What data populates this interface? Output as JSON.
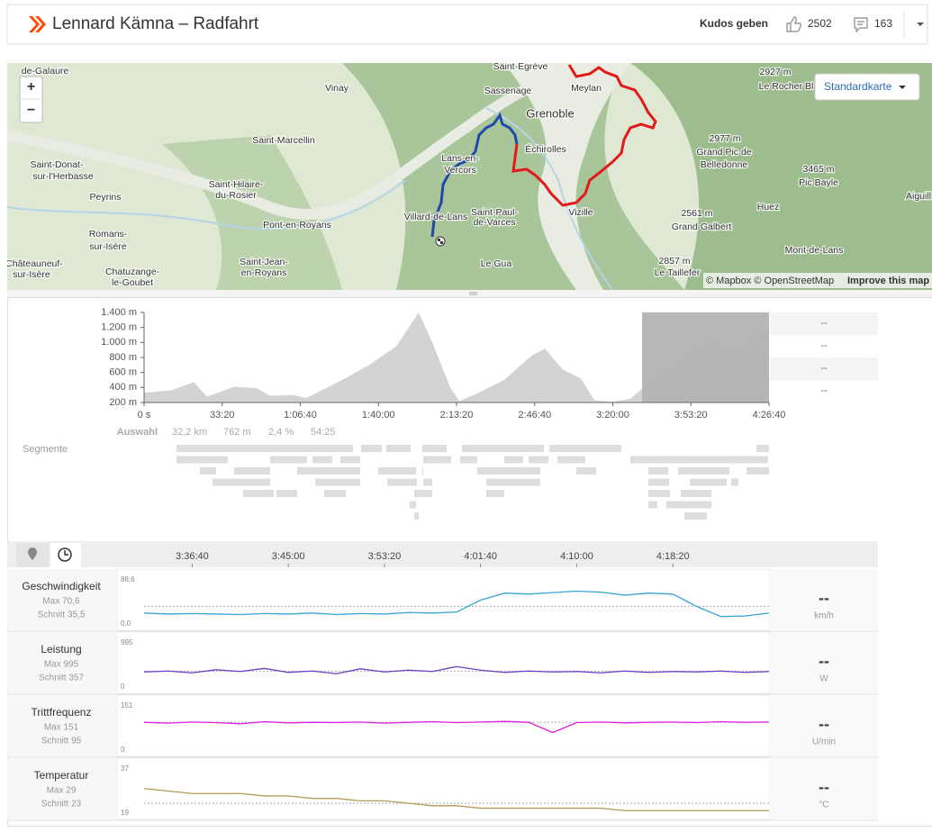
{
  "header": {
    "title": "Lennard Kämna – Radfahrt",
    "kudos_button": "Kudos geben",
    "kudos_count": 2502,
    "comment_count": 163
  },
  "map": {
    "zoom_in": "+",
    "zoom_out": "−",
    "style_button": "Standardkarte",
    "attribution": "© Mapbox © OpenStreetMap",
    "improve": "Improve this map",
    "labels": [
      "Saint-Egrève",
      "Meylan",
      "Vinay",
      "Sassenage",
      "Grenoble",
      "de-Galaure",
      "2927 m",
      "Le Rocher Bl",
      "Saint-Marcellin",
      "Échirolles",
      "2977 m",
      "Grand Pic de",
      "Belledonne",
      "Saint-Donat-",
      "sur-l'Herbasse",
      "Lans-en-",
      "Vercors",
      "3465 m",
      "Pic Bayle",
      "Saint-Hilaire-",
      "du-Rosier",
      "Peyrins",
      "Aiguill",
      "Huez",
      "Villard-de-Lans",
      "Saint-Paul-",
      "de-Varces",
      "Vizille",
      "2561 m",
      "Grand Galbert",
      "Pont-en-Royans",
      "Romans-",
      "sur-Isère",
      "Mont-de-Lans",
      "Châteauneuf-",
      "sur-Isère",
      "Saint-Jean-",
      "en-Royans",
      "Chatuzange-",
      "le-Goubet",
      "Le Gua",
      "2857 m",
      "Le Taillefer"
    ]
  },
  "selection": {
    "label": "Auswahl",
    "distance": "32,2 km",
    "elevation": "762 m",
    "grade": "2,4 %",
    "time": "54:25"
  },
  "segments_label": "Segmente",
  "elevation_readouts": [
    "--",
    "--",
    "--",
    "--"
  ],
  "stream_xticks": [
    {
      "value": 13000,
      "label": "3:36:40"
    },
    {
      "value": 13500,
      "label": "3:45:00"
    },
    {
      "value": 14000,
      "label": "3:53:20"
    },
    {
      "value": 14500,
      "label": "4:01:40"
    },
    {
      "value": 15000,
      "label": "4:10:00"
    },
    {
      "value": 15500,
      "label": "4:18:20"
    }
  ],
  "chart_data": [
    {
      "type": "area",
      "color": "#d3d3d3",
      "x": [
        0,
        690,
        1270,
        1610,
        2310,
        2880,
        3230,
        3800,
        4150,
        5070,
        5760,
        6460,
        7030,
        7380,
        7840,
        8070,
        8530,
        9220,
        9910,
        10260,
        10720,
        11180,
        11530,
        11990,
        12450,
        12790,
        13830,
        14520,
        14980,
        15440,
        16000
      ],
      "values": [
        330,
        360,
        470,
        280,
        410,
        390,
        290,
        300,
        260,
        500,
        700,
        950,
        1400,
        1000,
        400,
        220,
        320,
        500,
        820,
        920,
        640,
        520,
        230,
        210,
        250,
        400,
        800,
        1080,
        950,
        970,
        1200
      ],
      "xlim": [
        0,
        16000
      ],
      "ylim": [
        200,
        1400
      ],
      "xticks": [
        {
          "value": 0,
          "label": "0 s"
        },
        {
          "value": 2000,
          "label": "33:20"
        },
        {
          "value": 4000,
          "label": "1:06:40"
        },
        {
          "value": 6000,
          "label": "1:40:00"
        },
        {
          "value": 8000,
          "label": "2:13:20"
        },
        {
          "value": 10000,
          "label": "2:46:40"
        },
        {
          "value": 12000,
          "label": "3:20:00"
        },
        {
          "value": 14000,
          "label": "3:53:20"
        },
        {
          "value": 16000,
          "label": "4:26:40"
        }
      ],
      "yticks": [
        {
          "value": 200,
          "label": "200 m"
        },
        {
          "value": 400,
          "label": "400 m"
        },
        {
          "value": 600,
          "label": "600 m"
        },
        {
          "value": 800,
          "label": "800 m"
        },
        {
          "value": 1000,
          "label": "1.000 m"
        },
        {
          "value": 1200,
          "label": "1.200 m"
        },
        {
          "value": 1400,
          "label": "1.400 m"
        }
      ],
      "highlight": [
        12750,
        16000
      ]
    },
    {
      "type": "line",
      "name": "Geschwindigkeit",
      "max": "Max 70,6",
      "average": {
        "value": 35.5,
        "label": "Schnitt 35,5"
      },
      "unit": "km/h",
      "readout": "--",
      "color": "#3aa3d4",
      "xlim": [
        12750,
        16000
      ],
      "ylim": [
        0,
        88.6
      ],
      "yticks": [
        {
          "value": 88.6,
          "label": "88,6"
        },
        {
          "value": 0,
          "label": "0,0"
        }
      ],
      "x": [
        12750,
        12875,
        13000,
        13125,
        13250,
        13375,
        13500,
        13625,
        13750,
        13875,
        14000,
        14125,
        14250,
        14375,
        14500,
        14625,
        14750,
        14875,
        15000,
        15125,
        15250,
        15375,
        15500,
        15625,
        15750,
        15875,
        16000
      ],
      "values": [
        22,
        20,
        21,
        20,
        19,
        21,
        20,
        22,
        19,
        21,
        20,
        23,
        22,
        24,
        48,
        62,
        60,
        63,
        66,
        64,
        58,
        62,
        60,
        35,
        15,
        16,
        22
      ]
    },
    {
      "type": "line",
      "name": "Leistung",
      "max": "Max 995",
      "average": {
        "value": 357,
        "label": "Schnitt 357"
      },
      "unit": "W",
      "readout": "--",
      "color": "#6a3fc4",
      "xlim": [
        12750,
        16000
      ],
      "ylim": [
        0,
        995
      ],
      "yticks": [
        995,
        0
      ],
      "x": [
        12750,
        12875,
        13000,
        13125,
        13250,
        13375,
        13500,
        13625,
        13750,
        13875,
        14000,
        14125,
        14250,
        14375,
        14500,
        14625,
        14750,
        14875,
        15000,
        15125,
        15250,
        15375,
        15500,
        15625,
        15750,
        15875,
        16000
      ],
      "values": [
        340,
        360,
        320,
        390,
        350,
        420,
        330,
        360,
        300,
        410,
        340,
        380,
        350,
        460,
        380,
        330,
        360,
        340,
        350,
        320,
        360,
        330,
        350,
        340,
        360,
        330,
        350
      ]
    },
    {
      "type": "line",
      "name": "Trittfrequenz",
      "max": "Max 151",
      "average": {
        "value": 95,
        "label": "Schnitt 95"
      },
      "unit": "U/min",
      "readout": "--",
      "color": "#e020e0",
      "xlim": [
        12750,
        16000
      ],
      "ylim": [
        0,
        151
      ],
      "yticks": [
        151,
        0
      ],
      "x": [
        12750,
        12875,
        13000,
        13125,
        13250,
        13375,
        13500,
        13625,
        13750,
        13875,
        14000,
        14125,
        14250,
        14375,
        14500,
        14625,
        14750,
        14875,
        15000,
        15125,
        15250,
        15375,
        15500,
        15625,
        15750,
        15875,
        16000
      ],
      "values": [
        95,
        92,
        96,
        94,
        90,
        97,
        93,
        95,
        94,
        96,
        92,
        95,
        97,
        94,
        96,
        98,
        95,
        60,
        94,
        96,
        93,
        95,
        96,
        94,
        97,
        95,
        96
      ]
    },
    {
      "type": "line",
      "name": "Temperatur",
      "max": "Max 29",
      "average": {
        "value": 23,
        "label": "Schnitt 23"
      },
      "unit": "°C",
      "readout": "--",
      "color": "#b59b5b",
      "xlim": [
        12750,
        16000
      ],
      "ylim": [
        19,
        37
      ],
      "yticks": [
        37,
        19
      ],
      "x": [
        12750,
        12875,
        13000,
        13125,
        13250,
        13375,
        13500,
        13625,
        13750,
        13875,
        14000,
        14125,
        14250,
        14375,
        14500,
        14625,
        14750,
        14875,
        15000,
        15125,
        15250,
        15375,
        15500,
        15625,
        15750,
        15875,
        16000
      ],
      "values": [
        29,
        28,
        27,
        27,
        27,
        26,
        26,
        25,
        25,
        24,
        24,
        23,
        22,
        22,
        21,
        21,
        21,
        21,
        21,
        21,
        20,
        20,
        20,
        20,
        20,
        20,
        20
      ]
    }
  ]
}
